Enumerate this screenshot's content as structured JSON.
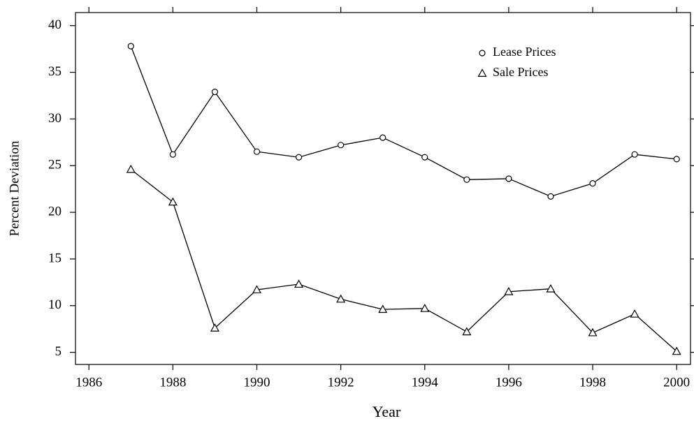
{
  "chart_data": {
    "type": "line",
    "x_label": "Year",
    "y_label": "Percent Deviation",
    "x": [
      1987,
      1988,
      1989,
      1990,
      1991,
      1992,
      1993,
      1994,
      1995,
      1996,
      1997,
      1998,
      1999,
      2000
    ],
    "series": [
      {
        "name": "Lease Prices",
        "color": "#000000",
        "marker": "circle",
        "values": [
          37.8,
          26.2,
          32.9,
          26.5,
          25.9,
          27.2,
          28.0,
          25.9,
          23.5,
          23.6,
          21.7,
          23.1,
          26.2,
          25.7
        ]
      },
      {
        "name": "Sale Prices",
        "color": "#000000",
        "marker": "triangle",
        "values": [
          24.6,
          21.1,
          7.6,
          11.7,
          12.3,
          10.7,
          9.6,
          9.7,
          7.2,
          11.5,
          11.8,
          7.1,
          9.1,
          5.1
        ]
      }
    ],
    "xlim": [
      1985.68,
      2000.33
    ],
    "xticks": [
      1986,
      1988,
      1990,
      1992,
      1994,
      1996,
      1998,
      2000
    ],
    "ylim": [
      3.7,
      41.4
    ],
    "yticks": [
      5,
      10,
      15,
      20,
      25,
      30,
      35,
      40
    ],
    "grid": false,
    "legend": "top-right"
  }
}
